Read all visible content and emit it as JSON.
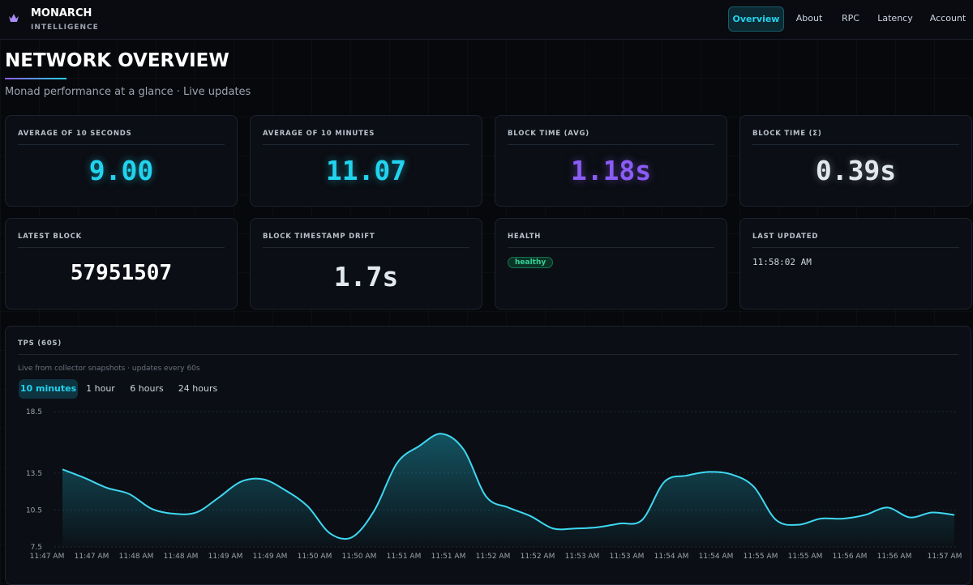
{
  "header": {
    "brand": "MONARCH",
    "tagline": "INTELLIGENCE",
    "nav": [
      "Overview",
      "About",
      "RPC",
      "Latency",
      "Account"
    ]
  },
  "page": {
    "title": "NETWORK OVERVIEW",
    "subtitle": "Monad performance at a glance · Live updates"
  },
  "cards": [
    {
      "label": "AVERAGE OF 10 SECONDS",
      "value": "9.00"
    },
    {
      "label": "AVERAGE OF 10 MINUTES",
      "value": "11.07"
    },
    {
      "label": "BLOCK TIME (AVG)",
      "value": "1.18s"
    },
    {
      "label": "BLOCK TIME (Σ)",
      "value": "0.39s"
    },
    {
      "label": "LATEST BLOCK",
      "value": "57951507"
    },
    {
      "label": "BLOCK TIMESTAMP DRIFT",
      "value": "1.7s"
    },
    {
      "label": "HEALTH",
      "value": "healthy"
    },
    {
      "label": "LAST UPDATED",
      "value": "11:58:02 AM"
    }
  ],
  "panel": {
    "title": "TPS (60S)",
    "note": "Live from collector snapshots · updates every 60s",
    "ranges": [
      "10 minutes",
      "1 hour",
      "6 hours",
      "24 hours"
    ]
  },
  "chart_data": {
    "type": "line",
    "color": "#3fd8f2",
    "grid": true,
    "ylim": [
      7.5,
      18.5
    ],
    "yticks": [
      7.5,
      10.5,
      13.5,
      18.5
    ],
    "categories": [
      "11:47 AM",
      null,
      "11:47 AM",
      null,
      "11:48 AM",
      null,
      "11:48 AM",
      null,
      "11:49 AM",
      null,
      "11:49 AM",
      null,
      "11:50 AM",
      null,
      "11:50 AM",
      null,
      "11:51 AM",
      null,
      "11:51 AM",
      null,
      "11:52 AM",
      null,
      "11:52 AM",
      null,
      "11:53 AM",
      null,
      "11:53 AM",
      null,
      "11:54 AM",
      null,
      "11:54 AM",
      null,
      "11:55 AM",
      null,
      "11:55 AM",
      null,
      "11:56 AM",
      null,
      "11:56 AM",
      null,
      "11:57 AM"
    ],
    "values": [
      13.8,
      13.1,
      12.3,
      11.8,
      10.6,
      10.2,
      10.3,
      11.5,
      12.8,
      13.0,
      12.1,
      10.8,
      8.6,
      8.3,
      10.5,
      14.3,
      15.7,
      16.7,
      15.4,
      11.6,
      10.7,
      10.0,
      9.0,
      9.0,
      9.1,
      9.4,
      9.7,
      12.8,
      13.3,
      13.6,
      13.4,
      12.4,
      9.7,
      9.3,
      9.8,
      9.8,
      10.1,
      10.7,
      9.9,
      10.3,
      10.1
    ]
  }
}
